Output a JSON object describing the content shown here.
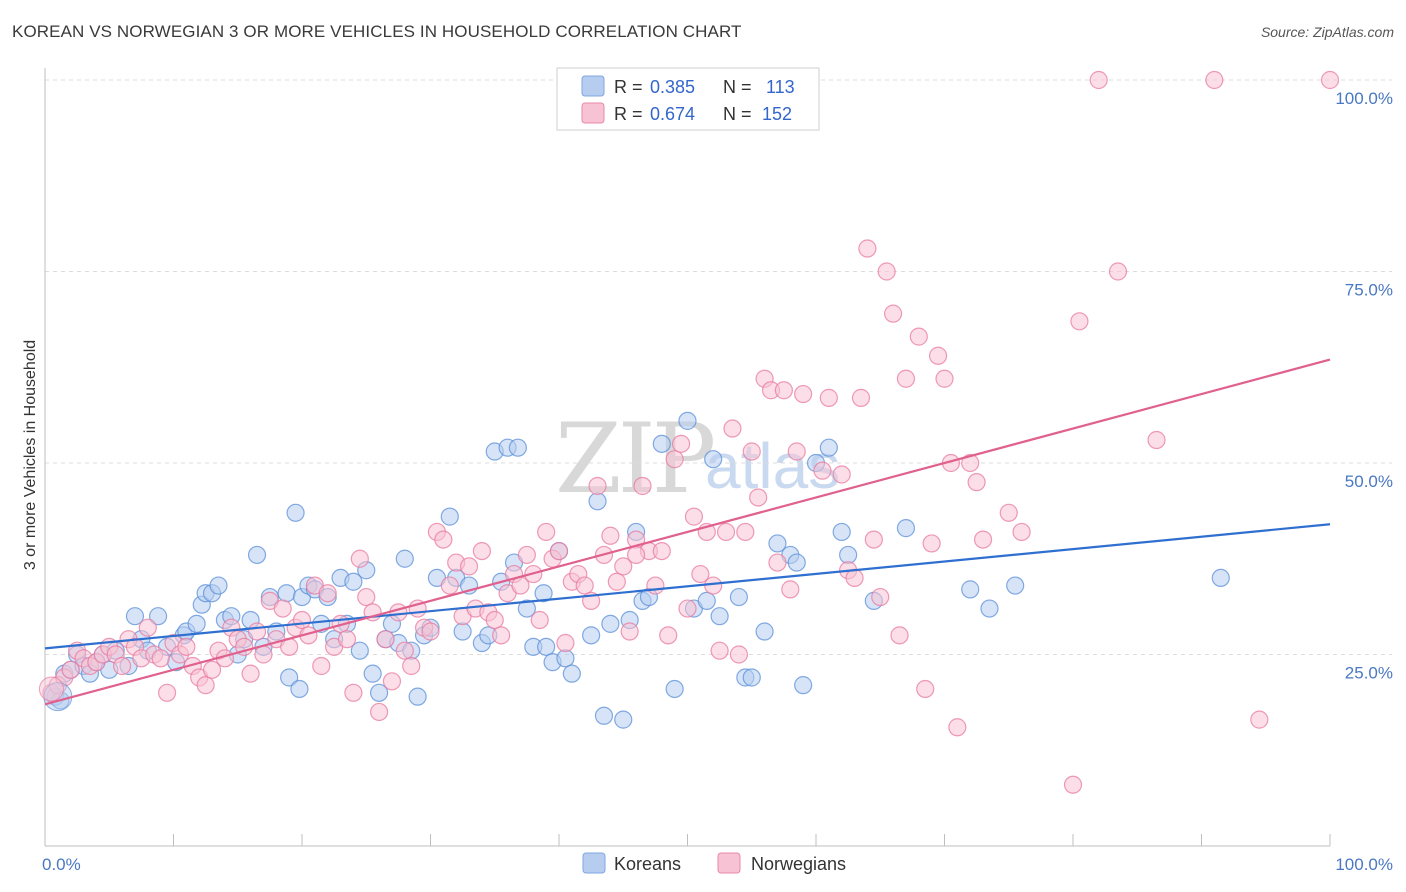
{
  "header": {
    "title": "KOREAN VS NORWEGIAN 3 OR MORE VEHICLES IN HOUSEHOLD CORRELATION CHART",
    "source": "Source: ZipAtlas.com"
  },
  "watermark": {
    "zip": "ZIP",
    "atlas": "atlas"
  },
  "legend": {
    "series": [
      {
        "r_label": "R =",
        "r_value": "0.385",
        "n_label": "N =",
        "n_value": "113",
        "color": "#9ab9e8"
      },
      {
        "r_label": "R =",
        "r_value": "0.674",
        "n_label": "N =",
        "n_value": "152",
        "color": "#f4a8c0"
      }
    ]
  },
  "bottom_legend": [
    {
      "label": "Koreans",
      "color": "#9ab9e8"
    },
    {
      "label": "Norwegians",
      "color": "#f4a8c0"
    }
  ],
  "chart_data": {
    "type": "scatter",
    "title": "KOREAN VS NORWEGIAN 3 OR MORE VEHICLES IN HOUSEHOLD CORRELATION CHART",
    "xlabel": "",
    "ylabel": "3 or more Vehicles in Household",
    "xlim": [
      0,
      100
    ],
    "ylim": [
      0,
      100
    ],
    "x_tick_labels": [
      "0.0%",
      "100.0%"
    ],
    "y_tick_labels": [
      "25.0%",
      "50.0%",
      "75.0%",
      "100.0%"
    ],
    "y_ticks": [
      25,
      50,
      75,
      100
    ],
    "grid": true,
    "legend_position": "top-center",
    "series": [
      {
        "name": "Koreans",
        "color": "#5b8fd8",
        "fill": "#b7cdf0",
        "trend": {
          "x": [
            0,
            100
          ],
          "y": [
            25.8,
            42.0
          ],
          "color": "#2f6fd0"
        },
        "points": [
          [
            0.8,
            19.5
          ],
          [
            1.2,
            19.0
          ],
          [
            1.5,
            22.5
          ],
          [
            2.0,
            23.0
          ],
          [
            2.5,
            25.0
          ],
          [
            3.0,
            23.5
          ],
          [
            3.5,
            22.5
          ],
          [
            4.0,
            24.0
          ],
          [
            4.5,
            25.0
          ],
          [
            5.0,
            23.0
          ],
          [
            5.5,
            25.5
          ],
          [
            6.5,
            23.5
          ],
          [
            7.0,
            30.0
          ],
          [
            7.5,
            27.0
          ],
          [
            8.0,
            25.5
          ],
          [
            8.8,
            30.0
          ],
          [
            9.5,
            26.0
          ],
          [
            10.2,
            24.0
          ],
          [
            10.8,
            27.5
          ],
          [
            11.0,
            28.0
          ],
          [
            11.8,
            29.0
          ],
          [
            12.2,
            31.5
          ],
          [
            12.5,
            33.0
          ],
          [
            13.0,
            33.0
          ],
          [
            13.5,
            34.0
          ],
          [
            14.0,
            29.5
          ],
          [
            14.5,
            30.0
          ],
          [
            15.0,
            25.0
          ],
          [
            15.5,
            27.0
          ],
          [
            16.0,
            29.5
          ],
          [
            16.5,
            38.0
          ],
          [
            17.0,
            26.0
          ],
          [
            17.5,
            32.5
          ],
          [
            18.0,
            28.0
          ],
          [
            18.8,
            33.0
          ],
          [
            19.0,
            22.0
          ],
          [
            19.5,
            43.5
          ],
          [
            19.8,
            20.5
          ],
          [
            20.0,
            32.5
          ],
          [
            20.5,
            34.0
          ],
          [
            21.0,
            33.5
          ],
          [
            21.5,
            29.0
          ],
          [
            22.0,
            32.5
          ],
          [
            22.5,
            27.0
          ],
          [
            23.0,
            35.0
          ],
          [
            23.5,
            29.0
          ],
          [
            24.0,
            34.5
          ],
          [
            24.5,
            25.5
          ],
          [
            25.0,
            36.0
          ],
          [
            25.5,
            22.5
          ],
          [
            26.0,
            20.0
          ],
          [
            26.5,
            27.0
          ],
          [
            27.0,
            29.0
          ],
          [
            27.5,
            26.5
          ],
          [
            28.0,
            37.5
          ],
          [
            28.5,
            25.5
          ],
          [
            29.0,
            19.5
          ],
          [
            29.5,
            27.5
          ],
          [
            30.0,
            28.5
          ],
          [
            30.5,
            35.0
          ],
          [
            31.5,
            43.0
          ],
          [
            32.0,
            35.0
          ],
          [
            32.5,
            28.0
          ],
          [
            33.0,
            34.0
          ],
          [
            34.0,
            26.5
          ],
          [
            34.5,
            27.5
          ],
          [
            35.0,
            51.5
          ],
          [
            35.5,
            34.5
          ],
          [
            36.0,
            52.0
          ],
          [
            36.5,
            37.0
          ],
          [
            36.8,
            52.0
          ],
          [
            37.5,
            31.0
          ],
          [
            38.0,
            26.0
          ],
          [
            38.8,
            33.0
          ],
          [
            39.0,
            26.0
          ],
          [
            39.5,
            24.0
          ],
          [
            40.0,
            38.5
          ],
          [
            40.5,
            24.5
          ],
          [
            41.0,
            22.5
          ],
          [
            42.5,
            27.5
          ],
          [
            43.0,
            45.0
          ],
          [
            43.5,
            17.0
          ],
          [
            44.0,
            29.0
          ],
          [
            45.0,
            16.5
          ],
          [
            45.5,
            29.5
          ],
          [
            46.0,
            41.0
          ],
          [
            46.5,
            32.0
          ],
          [
            47.0,
            32.5
          ],
          [
            48.0,
            52.5
          ],
          [
            49.0,
            20.5
          ],
          [
            50.0,
            55.5
          ],
          [
            50.5,
            31.0
          ],
          [
            51.5,
            32.0
          ],
          [
            52.0,
            50.5
          ],
          [
            52.5,
            30.0
          ],
          [
            54.0,
            32.5
          ],
          [
            54.5,
            22.0
          ],
          [
            55.0,
            22.0
          ],
          [
            56.0,
            28.0
          ],
          [
            57.0,
            39.5
          ],
          [
            58.0,
            38.0
          ],
          [
            58.5,
            37.0
          ],
          [
            59.0,
            21.0
          ],
          [
            60.0,
            50.0
          ],
          [
            61.0,
            52.0
          ],
          [
            62.0,
            41.0
          ],
          [
            62.5,
            38.0
          ],
          [
            64.5,
            32.0
          ],
          [
            67.0,
            41.5
          ],
          [
            72.0,
            33.5
          ],
          [
            73.5,
            31.0
          ],
          [
            75.5,
            34.0
          ],
          [
            91.5,
            35.0
          ]
        ]
      },
      {
        "name": "Norwegians",
        "color": "#e87aa0",
        "fill": "#f7c3d4",
        "trend": {
          "x": [
            0,
            100
          ],
          "y": [
            18.5,
            63.5
          ],
          "color": "#e0608e"
        },
        "points": [
          [
            0.5,
            20.0
          ],
          [
            1.0,
            21.0
          ],
          [
            1.5,
            22.0
          ],
          [
            2.0,
            23.0
          ],
          [
            2.5,
            25.5
          ],
          [
            3.0,
            24.5
          ],
          [
            3.5,
            23.5
          ],
          [
            4.0,
            24.0
          ],
          [
            4.5,
            25.0
          ],
          [
            5.0,
            26.0
          ],
          [
            5.5,
            25.0
          ],
          [
            6.0,
            23.5
          ],
          [
            6.5,
            27.0
          ],
          [
            7.0,
            26.0
          ],
          [
            7.5,
            24.5
          ],
          [
            8.0,
            28.5
          ],
          [
            8.5,
            25.0
          ],
          [
            9.0,
            24.5
          ],
          [
            9.5,
            20.0
          ],
          [
            10.0,
            26.5
          ],
          [
            10.5,
            25.0
          ],
          [
            11.0,
            26.0
          ],
          [
            11.5,
            23.5
          ],
          [
            12.0,
            22.0
          ],
          [
            12.5,
            21.0
          ],
          [
            13.0,
            23.0
          ],
          [
            13.5,
            25.5
          ],
          [
            14.0,
            24.5
          ],
          [
            14.5,
            28.5
          ],
          [
            15.0,
            27.0
          ],
          [
            15.5,
            26.0
          ],
          [
            16.0,
            22.5
          ],
          [
            16.5,
            28.0
          ],
          [
            17.0,
            25.0
          ],
          [
            17.5,
            32.0
          ],
          [
            18.0,
            27.0
          ],
          [
            18.5,
            31.0
          ],
          [
            19.0,
            26.0
          ],
          [
            19.5,
            28.5
          ],
          [
            20.0,
            29.5
          ],
          [
            20.5,
            27.5
          ],
          [
            21.0,
            34.0
          ],
          [
            21.5,
            23.5
          ],
          [
            22.0,
            33.0
          ],
          [
            22.5,
            26.0
          ],
          [
            23.0,
            29.0
          ],
          [
            23.5,
            27.0
          ],
          [
            24.0,
            20.0
          ],
          [
            24.5,
            37.5
          ],
          [
            25.0,
            32.5
          ],
          [
            25.5,
            30.5
          ],
          [
            26.0,
            17.5
          ],
          [
            26.5,
            27.0
          ],
          [
            27.0,
            21.5
          ],
          [
            27.5,
            30.5
          ],
          [
            28.0,
            25.5
          ],
          [
            28.5,
            23.5
          ],
          [
            29.0,
            31.0
          ],
          [
            29.5,
            28.5
          ],
          [
            30.0,
            28.0
          ],
          [
            30.5,
            41.0
          ],
          [
            31.0,
            40.0
          ],
          [
            31.5,
            34.0
          ],
          [
            32.0,
            37.0
          ],
          [
            32.5,
            30.0
          ],
          [
            33.0,
            36.5
          ],
          [
            33.5,
            31.0
          ],
          [
            34.0,
            38.5
          ],
          [
            34.5,
            30.5
          ],
          [
            35.0,
            29.5
          ],
          [
            35.5,
            27.5
          ],
          [
            36.0,
            33.0
          ],
          [
            36.5,
            35.5
          ],
          [
            37.0,
            34.0
          ],
          [
            37.5,
            38.0
          ],
          [
            38.0,
            35.5
          ],
          [
            38.5,
            29.5
          ],
          [
            39.0,
            41.0
          ],
          [
            39.5,
            37.5
          ],
          [
            40.0,
            38.5
          ],
          [
            40.5,
            26.5
          ],
          [
            41.0,
            34.5
          ],
          [
            41.5,
            35.5
          ],
          [
            42.0,
            34.0
          ],
          [
            42.5,
            32.0
          ],
          [
            43.0,
            47.0
          ],
          [
            43.5,
            38.0
          ],
          [
            44.0,
            40.5
          ],
          [
            44.5,
            34.5
          ],
          [
            45.0,
            36.5
          ],
          [
            45.5,
            28.0
          ],
          [
            46.0,
            40.0
          ],
          [
            46.5,
            47.0
          ],
          [
            47.0,
            38.5
          ],
          [
            47.5,
            34.0
          ],
          [
            48.0,
            38.5
          ],
          [
            48.5,
            27.5
          ],
          [
            49.0,
            50.5
          ],
          [
            49.5,
            52.5
          ],
          [
            50.0,
            31.0
          ],
          [
            50.5,
            43.0
          ],
          [
            51.0,
            35.5
          ],
          [
            51.5,
            41.0
          ],
          [
            52.0,
            34.0
          ],
          [
            52.5,
            25.5
          ],
          [
            53.0,
            41.0
          ],
          [
            53.5,
            54.5
          ],
          [
            54.0,
            25.0
          ],
          [
            54.5,
            41.0
          ],
          [
            55.0,
            51.5
          ],
          [
            55.5,
            45.5
          ],
          [
            56.0,
            61.0
          ],
          [
            56.5,
            59.5
          ],
          [
            57.0,
            37.0
          ],
          [
            58.0,
            33.5
          ],
          [
            58.5,
            51.5
          ],
          [
            59.0,
            59.0
          ],
          [
            60.5,
            49.0
          ],
          [
            61.0,
            58.5
          ],
          [
            62.0,
            48.5
          ],
          [
            62.5,
            36.0
          ],
          [
            63.0,
            35.0
          ],
          [
            63.5,
            58.5
          ],
          [
            64.0,
            78.0
          ],
          [
            64.5,
            40.0
          ],
          [
            65.0,
            32.5
          ],
          [
            65.5,
            75.0
          ],
          [
            66.0,
            69.5
          ],
          [
            66.5,
            27.5
          ],
          [
            67.0,
            61.0
          ],
          [
            68.0,
            66.5
          ],
          [
            68.5,
            20.5
          ],
          [
            69.0,
            39.5
          ],
          [
            69.5,
            64.0
          ],
          [
            70.0,
            61.0
          ],
          [
            70.5,
            50.0
          ],
          [
            71.0,
            15.5
          ],
          [
            72.0,
            50.0
          ],
          [
            72.5,
            47.5
          ],
          [
            73.0,
            40.0
          ],
          [
            75.0,
            43.5
          ],
          [
            76.0,
            41.0
          ],
          [
            80.0,
            8.0
          ],
          [
            80.5,
            68.5
          ],
          [
            82.0,
            100.0
          ],
          [
            83.5,
            75.0
          ],
          [
            86.5,
            53.0
          ],
          [
            91.0,
            100.0
          ],
          [
            94.5,
            16.5
          ],
          [
            100.0,
            100.0
          ],
          [
            57.5,
            59.5
          ],
          [
            46.0,
            38.0
          ]
        ]
      }
    ]
  }
}
